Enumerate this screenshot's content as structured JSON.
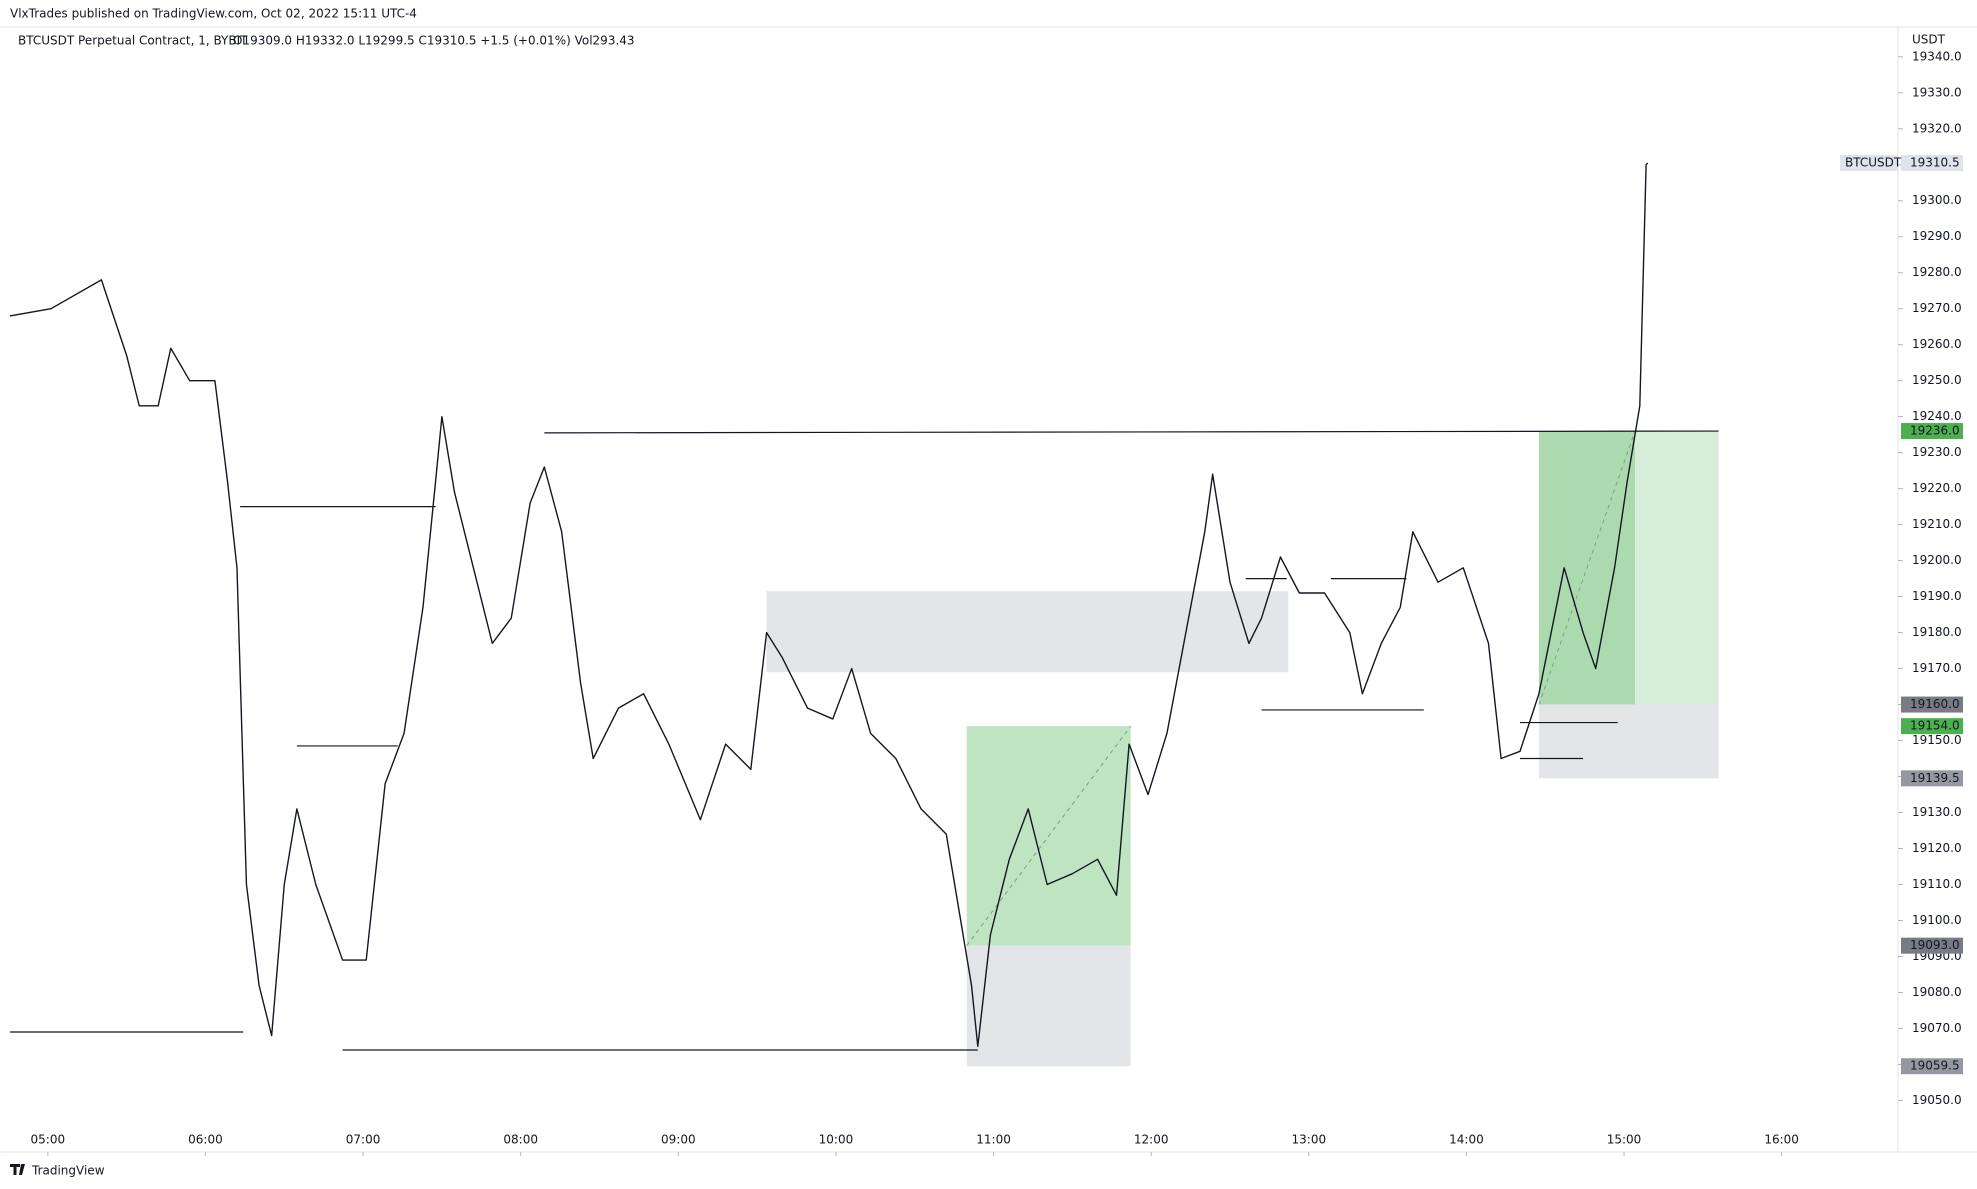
{
  "chart_data": {
    "type": "line",
    "source": "VlxTrades published on TradingView.com, Oct 02, 2022 15:11 UTC-4",
    "title": "BTCUSDT Perpetual Contract, 1, BYBIT",
    "ohlc": "O19309.0  H19332.0  L19299.5  C19310.5  +1.5 (+0.01%)  Vol293.43",
    "y_unit": "USDT",
    "symbol_label": "BTCUSDT",
    "branding": "TradingView",
    "color": "#131722",
    "xlim": [
      4.76,
      16.7
    ],
    "ylim": [
      19044,
      19348
    ],
    "xticks": [
      {
        "value": 5,
        "label": "05:00"
      },
      {
        "value": 6,
        "label": "06:00"
      },
      {
        "value": 7,
        "label": "07:00"
      },
      {
        "value": 8,
        "label": "08:00"
      },
      {
        "value": 9,
        "label": "09:00"
      },
      {
        "value": 10,
        "label": "10:00"
      },
      {
        "value": 11,
        "label": "11:00"
      },
      {
        "value": 12,
        "label": "12:00"
      },
      {
        "value": 13,
        "label": "13:00"
      },
      {
        "value": 14,
        "label": "14:00"
      },
      {
        "value": 15,
        "label": "15:00"
      },
      {
        "value": 16,
        "label": "16:00"
      }
    ],
    "yticks": [
      {
        "value": 19050,
        "label": "19050.0"
      },
      {
        "value": 19060,
        "label": "19060.0"
      },
      {
        "value": 19070,
        "label": "19070.0"
      },
      {
        "value": 19080,
        "label": "19080.0"
      },
      {
        "value": 19090,
        "label": "19090.0"
      },
      {
        "value": 19100,
        "label": "19100.0"
      },
      {
        "value": 19110,
        "label": "19110.0"
      },
      {
        "value": 19120,
        "label": "19120.0"
      },
      {
        "value": 19130,
        "label": "19130.0"
      },
      {
        "value": 19140,
        "label": "19140.0"
      },
      {
        "value": 19150,
        "label": "19150.0"
      },
      {
        "value": 19160,
        "label": "19160.0"
      },
      {
        "value": 19170,
        "label": "19170.0"
      },
      {
        "value": 19180,
        "label": "19180.0"
      },
      {
        "value": 19190,
        "label": "19190.0"
      },
      {
        "value": 19200,
        "label": "19200.0"
      },
      {
        "value": 19210,
        "label": "19210.0"
      },
      {
        "value": 19220,
        "label": "19220.0"
      },
      {
        "value": 19230,
        "label": "19230.0"
      },
      {
        "value": 19240,
        "label": "19240.0"
      },
      {
        "value": 19250,
        "label": "19250.0"
      },
      {
        "value": 19260,
        "label": "19260.0"
      },
      {
        "value": 19270,
        "label": "19270.0"
      },
      {
        "value": 19280,
        "label": "19280.0"
      },
      {
        "value": 19290,
        "label": "19290.0"
      },
      {
        "value": 19300,
        "label": "19300.0"
      },
      {
        "value": 19310,
        "label": "19310.0"
      },
      {
        "value": 19320,
        "label": "19320.0"
      },
      {
        "value": 19330,
        "label": "19330.0"
      },
      {
        "value": 19340,
        "label": "19340.0"
      }
    ],
    "x": [
      4.76,
      5.02,
      5.34,
      5.5,
      5.58,
      5.7,
      5.78,
      5.9,
      6.06,
      6.14,
      6.2,
      6.26,
      6.34,
      6.42,
      6.5,
      6.58,
      6.7,
      6.87,
      7.02,
      7.14,
      7.26,
      7.38,
      7.46,
      7.5,
      7.58,
      7.7,
      7.82,
      7.94,
      8.06,
      8.15,
      8.26,
      8.38,
      8.46,
      8.62,
      8.78,
      8.94,
      9.14,
      9.3,
      9.46,
      9.56,
      9.66,
      9.82,
      9.98,
      10.1,
      10.22,
      10.38,
      10.54,
      10.7,
      10.86,
      10.9,
      10.98,
      11.1,
      11.22,
      11.34,
      11.5,
      11.66,
      11.78,
      11.86,
      11.98,
      12.1,
      12.22,
      12.34,
      12.39,
      12.5,
      12.62,
      12.7,
      12.82,
      12.94,
      13.1,
      13.26,
      13.34,
      13.46,
      13.58,
      13.66,
      13.82,
      13.98,
      14.14,
      14.22,
      14.34,
      14.46,
      14.62,
      14.74,
      14.82,
      14.94,
      15.02,
      15.1,
      15.14,
      15.15
    ],
    "values": [
      19268,
      19270,
      19278,
      19257,
      19243,
      19243,
      19259,
      19250,
      19250,
      19222,
      19198,
      19110,
      19082,
      19068,
      19110,
      19131,
      19110,
      19089,
      19089,
      19138,
      19152,
      19187,
      19222,
      19240,
      19219,
      19198,
      19177,
      19184,
      19216,
      19226,
      19208,
      19166,
      19145,
      19159,
      19163,
      19149,
      19128,
      19149,
      19142,
      19180,
      19173,
      19159,
      19156,
      19170,
      19152,
      19145,
      19131,
      19124,
      19082,
      19065,
      19096,
      19117,
      19131,
      19110,
      19113,
      19117,
      19107,
      19149,
      19135,
      19152,
      19180,
      19208,
      19224,
      19194,
      19177,
      19184,
      19201,
      19191,
      19191,
      19180,
      19163,
      19177,
      19187,
      19208,
      19194,
      19198,
      19177,
      19145,
      19147,
      19163,
      19198,
      19180,
      19170,
      19198,
      19222,
      19243,
      19310,
      19310.5
    ],
    "zones": [
      {
        "x": [
          9.56,
          12.87
        ],
        "y": [
          19169,
          19191.5
        ],
        "color": "#e4e5e9"
      },
      {
        "x": [
          10.83,
          11.87
        ],
        "y": [
          19093,
          19154
        ],
        "color": "#bfe4c1",
        "diagonal": true
      },
      {
        "x": [
          10.83,
          11.87
        ],
        "y": [
          19059.5,
          19093
        ],
        "color": "#e4e5e9"
      },
      {
        "x": [
          14.46,
          15.07
        ],
        "y": [
          19160,
          19236
        ],
        "color": "#acdaaf",
        "diagonal": true
      },
      {
        "x": [
          15.07,
          15.6
        ],
        "y": [
          19160,
          19236
        ],
        "color": "#d6eed7"
      },
      {
        "x": [
          14.46,
          15.6
        ],
        "y": [
          19139.5,
          19160
        ],
        "color": "#e4e5e9"
      }
    ],
    "levels": [
      {
        "x": [
          4.76,
          6.24
        ],
        "y": [
          19069,
          19069
        ]
      },
      {
        "x": [
          6.22,
          7.46
        ],
        "y": [
          19215,
          19215
        ]
      },
      {
        "x": [
          6.58,
          7.22
        ],
        "y": [
          19148.5,
          19148.5
        ]
      },
      {
        "x": [
          6.87,
          10.9
        ],
        "y": [
          19064,
          19064
        ]
      },
      {
        "x": [
          8.15,
          15.6
        ],
        "y": [
          19235.5,
          19236
        ]
      },
      {
        "x": [
          12.6,
          12.86
        ],
        "y": [
          19195,
          19195
        ]
      },
      {
        "x": [
          12.7,
          13.73
        ],
        "y": [
          19158.5,
          19158.5
        ]
      },
      {
        "x": [
          13.14,
          13.62
        ],
        "y": [
          19195,
          19195
        ]
      },
      {
        "x": [
          14.34,
          14.96
        ],
        "y": [
          19155,
          19155
        ]
      },
      {
        "x": [
          14.34,
          14.74
        ],
        "y": [
          19145,
          19145
        ]
      }
    ],
    "markers": [
      {
        "value": 19310.5,
        "label": "19310.5",
        "color": "#e0e3eb",
        "text_color": "#131722"
      },
      {
        "value": 19236,
        "label": "19236.0",
        "color": "#4caf50",
        "text_color": "#ffffff"
      },
      {
        "value": 19160,
        "label": "19160.0",
        "color": "#787b86",
        "text_color": "#ffffff"
      },
      {
        "value": 19154,
        "label": "19154.0",
        "color": "#4caf50",
        "text_color": "#ffffff"
      },
      {
        "value": 19139.5,
        "label": "19139.5",
        "color": "#9598a1",
        "text_color": "#ffffff"
      },
      {
        "value": 19093,
        "label": "19093.0",
        "color": "#787b86",
        "text_color": "#ffffff"
      },
      {
        "value": 19059.5,
        "label": "19059.5",
        "color": "#9598a1",
        "text_color": "#ffffff"
      }
    ]
  }
}
